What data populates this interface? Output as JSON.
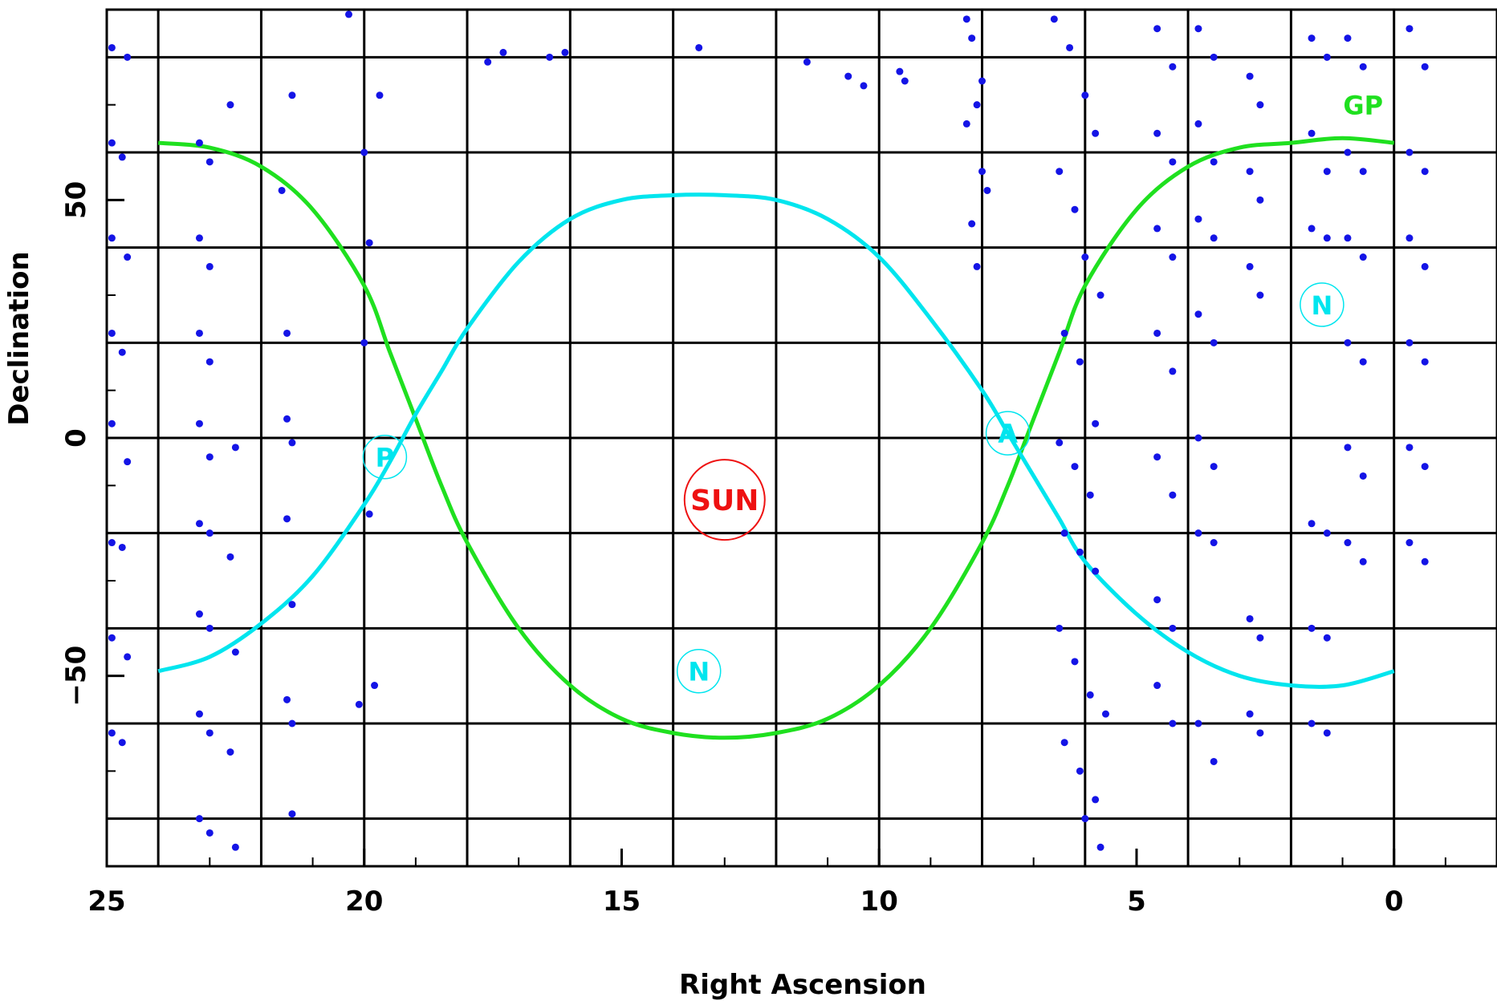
{
  "chart_data": {
    "type": "scatter",
    "title": "",
    "xlabel": "Right Ascension",
    "ylabel": "Declination",
    "xlim": [
      25,
      -2
    ],
    "ylim": [
      -90,
      90
    ],
    "x_reversed": true,
    "xticks": [
      25,
      20,
      15,
      10,
      5,
      0
    ],
    "yticks": [
      50,
      0,
      -50
    ],
    "grid": true,
    "grid_x": [
      24,
      22,
      20,
      18,
      16,
      14,
      12,
      10,
      8,
      6,
      4,
      2,
      0
    ],
    "grid_y": [
      80,
      60,
      40,
      20,
      0,
      -20,
      -40,
      -60,
      -80
    ],
    "colors": {
      "galactic_plane": "#1fe01f",
      "ecliptic_like": "#00e5ee",
      "points": "#1414e6",
      "sun": "#ee1111",
      "grid": "#000000"
    },
    "series": [
      {
        "name": "GP",
        "kind": "curve",
        "color": "#1fe01f",
        "x": [
          24,
          23,
          22,
          21,
          20,
          19.5,
          19,
          18.5,
          18,
          17,
          16,
          15,
          14,
          13,
          12,
          11,
          10,
          9,
          8,
          7.5,
          7,
          6.5,
          6,
          5,
          4,
          3,
          2,
          1,
          0
        ],
        "y": [
          62,
          61,
          57,
          48,
          32,
          18,
          4,
          -10,
          -22,
          -40,
          -52,
          -59,
          -62,
          -63,
          -62,
          -59,
          -52,
          -40,
          -22,
          -10,
          4,
          18,
          32,
          48,
          57,
          61,
          62,
          63,
          62
        ]
      },
      {
        "name": "",
        "kind": "curve",
        "color": "#00e5ee",
        "x": [
          24,
          23,
          22,
          21,
          20,
          19.5,
          19,
          18.5,
          18,
          17,
          16,
          15,
          14,
          13,
          12,
          11,
          10,
          9,
          8,
          7.5,
          7,
          6.5,
          6,
          5,
          4,
          3,
          2,
          1,
          0
        ],
        "y": [
          -49,
          -46,
          -39,
          -29,
          -14,
          -5,
          5,
          14,
          23,
          37,
          46,
          50,
          51,
          51,
          50,
          46,
          38,
          25,
          10,
          1,
          -8,
          -17,
          -26,
          -37,
          -45,
          -50,
          -52,
          -52,
          -49
        ]
      },
      {
        "name": "",
        "kind": "points",
        "color": "#1414e6",
        "x": [
          24.9,
          24.6,
          24.9,
          24.7,
          24.9,
          24.6,
          24.9,
          24.7,
          24.9,
          24.6,
          24.9,
          24.7,
          24.9,
          24.6,
          24.9,
          24.7,
          23.2,
          23.0,
          23.2,
          23.0,
          23.2,
          23.0,
          23.2,
          23.0,
          23.2,
          23.0,
          23.2,
          23.0,
          23.2,
          23.0,
          23.2,
          23.0,
          22.6,
          22.5,
          22.6,
          22.5,
          22.6,
          22.5,
          21.6,
          21.4,
          21.5,
          21.4,
          21.5,
          21.4,
          21.5,
          21.4,
          21.5,
          21.4,
          20.0,
          19.9,
          20.0,
          19.7,
          20.3,
          19.8,
          19.9,
          20.1,
          17.6,
          17.3,
          16.4,
          16.1,
          13.5,
          11.4,
          9.5,
          10.6,
          10.3,
          9.6,
          8.3,
          8.2,
          8.1,
          8.3,
          8.0,
          7.9,
          8.2,
          8.1,
          8.0,
          6.6,
          6.3,
          6.0,
          5.8,
          6.5,
          6.2,
          6.0,
          5.7,
          6.4,
          6.1,
          5.8,
          6.5,
          6.2,
          5.9,
          6.4,
          6.1,
          5.8,
          6.5,
          6.2,
          5.9,
          5.6,
          6.4,
          6.1,
          5.8,
          6.0,
          5.7,
          4.6,
          4.3,
          4.6,
          4.3,
          4.6,
          4.3,
          4.6,
          4.3,
          4.6,
          4.3,
          4.6,
          4.3,
          4.6,
          4.3,
          3.8,
          3.5,
          3.8,
          3.5,
          3.8,
          3.5,
          3.8,
          3.5,
          3.8,
          3.5,
          3.8,
          3.5,
          3.8,
          3.5,
          2.8,
          2.6,
          2.8,
          2.6,
          2.8,
          2.6,
          2.8,
          2.6,
          2.8,
          2.6,
          1.6,
          1.3,
          1.6,
          1.3,
          1.6,
          1.3,
          1.6,
          1.3,
          1.6,
          1.3,
          1.6,
          1.3,
          0.9,
          0.6,
          0.9,
          0.6,
          0.9,
          0.6,
          0.9,
          0.6,
          0.9,
          0.6,
          0.9,
          0.6,
          -0.3,
          -0.6,
          -0.3,
          -0.6,
          -0.3,
          -0.6,
          -0.3,
          -0.6,
          -0.3,
          -0.6,
          -0.3,
          -0.6
        ],
        "y": [
          82,
          80,
          62,
          59,
          42,
          38,
          22,
          18,
          3,
          -5,
          -22,
          -23,
          -42,
          -46,
          -62,
          -64,
          62,
          58,
          42,
          36,
          22,
          16,
          3,
          -4,
          -18,
          -20,
          -37,
          -40,
          -58,
          -62,
          -80,
          -83,
          70,
          -2,
          -25,
          -45,
          -66,
          -86,
          52,
          72,
          22,
          -1,
          -17,
          -35,
          -55,
          -79,
          4,
          -60,
          60,
          41,
          20,
          72,
          89,
          -52,
          -16,
          -56,
          79,
          81,
          80,
          81,
          82,
          79,
          75,
          76,
          74,
          77,
          88,
          84,
          70,
          66,
          56,
          52,
          45,
          36,
          75,
          88,
          82,
          72,
          64,
          56,
          48,
          38,
          30,
          22,
          16,
          3,
          -1,
          -6,
          -12,
          -20,
          -24,
          -28,
          -40,
          -47,
          -54,
          -58,
          -64,
          -70,
          -76,
          -80,
          -86,
          86,
          78,
          64,
          58,
          44,
          38,
          22,
          14,
          -4,
          -12,
          -34,
          -40,
          -52,
          -60,
          86,
          80,
          66,
          58,
          46,
          42,
          26,
          20,
          0,
          -6,
          -20,
          -22,
          -60,
          -68,
          76,
          70,
          56,
          50,
          36,
          30,
          -38,
          -42,
          -58,
          -62,
          84,
          80,
          64,
          56,
          44,
          42,
          -18,
          -20,
          -40,
          -42,
          -60,
          -62,
          84,
          78,
          60,
          56,
          42,
          38,
          20,
          16,
          -2,
          -8,
          -22,
          -26,
          86,
          78,
          60,
          56,
          42,
          36,
          20,
          16,
          -2,
          -6,
          -22,
          -26
        ]
      }
    ],
    "annotations": [
      {
        "label": "SUN",
        "color": "#ee1111",
        "x": 13.0,
        "y": -13,
        "marker": "circle"
      },
      {
        "label": "P",
        "color": "#00e5ee",
        "x": 19.6,
        "y": -4,
        "marker": "circle"
      },
      {
        "label": "A",
        "color": "#00e5ee",
        "x": 7.5,
        "y": 1,
        "marker": "circle"
      },
      {
        "label": "N",
        "color": "#00e5ee",
        "x": 13.5,
        "y": -49,
        "marker": "circle"
      },
      {
        "label": "N",
        "color": "#00e5ee",
        "x": 1.4,
        "y": 28,
        "marker": "circle"
      },
      {
        "label": "GP",
        "color": "#1fe01f",
        "x": 0.6,
        "y": 68,
        "marker": "none"
      }
    ]
  }
}
